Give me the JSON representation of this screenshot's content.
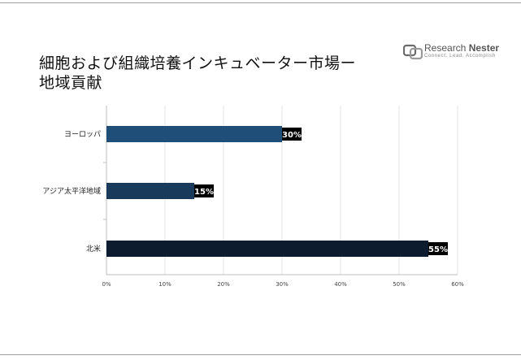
{
  "header": {
    "title_line1": "細胞および組織培養インキュベーター市場ー",
    "title_line2": "地域貢献"
  },
  "logo": {
    "brand_prefix": "Research ",
    "brand_suffix": "Nester",
    "tagline": "Connect. Lead. Accomplish",
    "icon": "research-nester-logo-icon"
  },
  "chart_data": {
    "type": "bar",
    "orientation": "horizontal",
    "title": "細胞および組織培養インキュベーター市場ー地域貢献",
    "categories": [
      "ヨーロッパ",
      "アジア太平洋地域",
      "北米"
    ],
    "values": [
      30,
      15,
      55
    ],
    "value_labels": [
      "30%",
      "15%",
      "55%"
    ],
    "bar_colors": [
      "#1f4e79",
      "#1a3a5c",
      "#0d1b2e"
    ],
    "xlim": [
      0,
      60
    ],
    "xticks": [
      "0%",
      "10%",
      "20%",
      "30%",
      "40%",
      "50%",
      "60%"
    ],
    "xlabel": "",
    "ylabel": "",
    "grid": true,
    "legend": "none"
  }
}
